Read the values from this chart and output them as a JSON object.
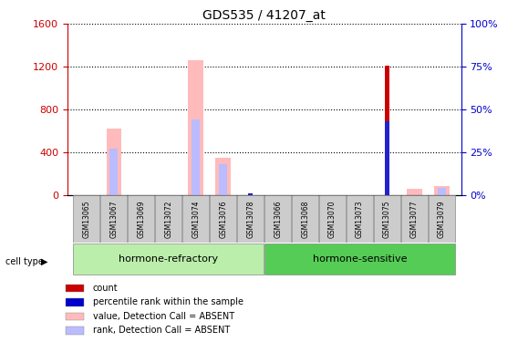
{
  "title": "GDS535 / 41207_at",
  "samples": [
    "GSM13065",
    "GSM13067",
    "GSM13069",
    "GSM13072",
    "GSM13074",
    "GSM13076",
    "GSM13078",
    "GSM13066",
    "GSM13068",
    "GSM13070",
    "GSM13073",
    "GSM13075",
    "GSM13077",
    "GSM13079"
  ],
  "value_absent": [
    0,
    620,
    0,
    0,
    1260,
    345,
    0,
    0,
    0,
    0,
    0,
    0,
    60,
    80
  ],
  "rank_absent_pct": [
    0,
    27,
    0,
    0,
    44,
    18,
    0,
    0,
    0,
    0,
    0,
    0,
    0,
    4
  ],
  "count_present": [
    0,
    0,
    0,
    0,
    0,
    0,
    0,
    0,
    0,
    0,
    0,
    1210,
    0,
    0
  ],
  "rank_present_pct": [
    0,
    0,
    0,
    0,
    0,
    0,
    1,
    0,
    0,
    0,
    0,
    43,
    0,
    0
  ],
  "ylim_left": [
    0,
    1600
  ],
  "ylim_right": [
    0,
    100
  ],
  "yticks_left": [
    0,
    400,
    800,
    1200,
    1600
  ],
  "yticks_right": [
    0,
    25,
    50,
    75,
    100
  ],
  "left_color": "#cc0000",
  "right_color": "#0000cc",
  "group1_label": "hormone-refractory",
  "group2_label": "hormone-sensitive",
  "group1_indices": [
    0,
    1,
    2,
    3,
    4,
    5,
    6
  ],
  "group2_indices": [
    7,
    8,
    9,
    10,
    11,
    12,
    13
  ],
  "cell_type_label": "cell type",
  "legend_items": [
    {
      "color": "#cc0000",
      "label": "count"
    },
    {
      "color": "#0000cc",
      "label": "percentile rank within the sample"
    },
    {
      "color": "#ffbbbb",
      "label": "value, Detection Call = ABSENT"
    },
    {
      "color": "#bbbbff",
      "label": "rank, Detection Call = ABSENT"
    }
  ],
  "group1_color": "#bbeeaa",
  "group2_color": "#55cc55",
  "xticklabel_bg": "#cccccc"
}
